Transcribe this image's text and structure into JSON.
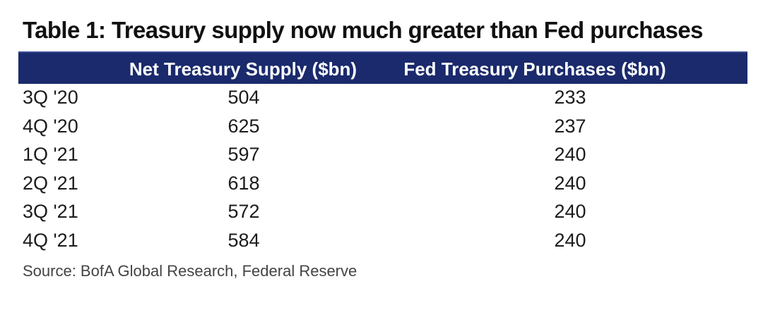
{
  "chart_data": {
    "type": "table",
    "title": "Table 1: Treasury supply now much greater than Fed purchases",
    "columns": [
      "",
      "Net Treasury Supply ($bn)",
      "Fed Treasury Purchases ($bn)"
    ],
    "rows": [
      {
        "period": "3Q '20",
        "supply": "504",
        "purchases": "233"
      },
      {
        "period": "4Q '20",
        "supply": "625",
        "purchases": "237"
      },
      {
        "period": "1Q '21",
        "supply": "597",
        "purchases": "240"
      },
      {
        "period": "2Q '21",
        "supply": "618",
        "purchases": "240"
      },
      {
        "period": "3Q '21",
        "supply": "572",
        "purchases": "240"
      },
      {
        "period": "4Q '21",
        "supply": "584",
        "purchases": "240"
      }
    ],
    "source": "Source: BofA Global Research, Federal Reserve"
  },
  "colors": {
    "header_bg": "#1a2a6c",
    "header_text": "#ffffff"
  }
}
